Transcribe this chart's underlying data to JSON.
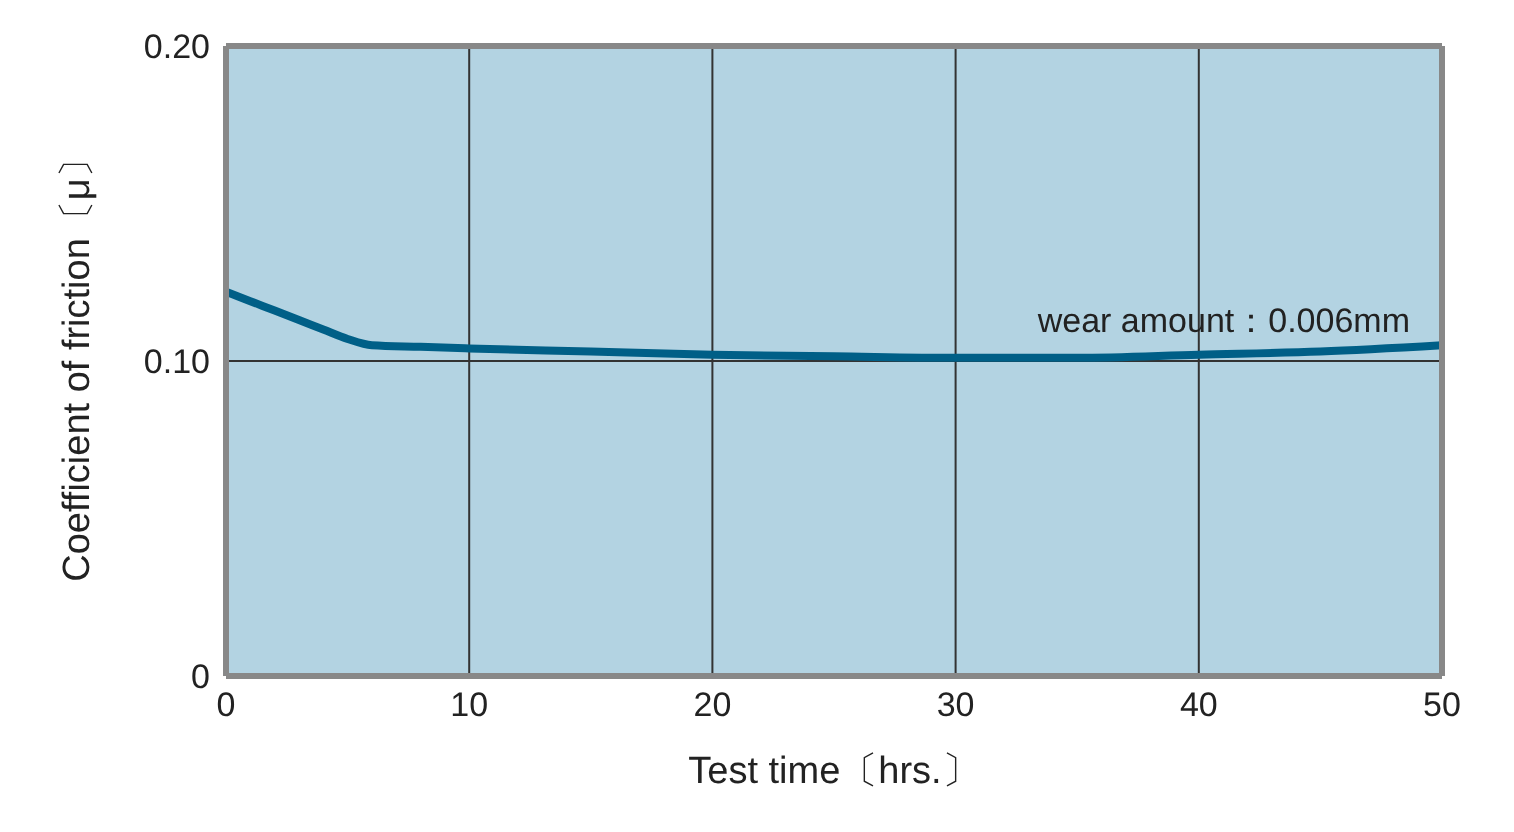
{
  "chart_data": {
    "type": "line",
    "xlabel": "Test time〔hrs.〕",
    "ylabel": "Coefficient of friction〔μ〕",
    "annotations": [
      "wear amount：0.006mm"
    ],
    "x": [
      0,
      1,
      2,
      3,
      4,
      5,
      6,
      8,
      10,
      15,
      20,
      25,
      30,
      35,
      40,
      45,
      50
    ],
    "series": [
      {
        "color": "#005f87",
        "values": [
          0.122,
          0.119,
          0.116,
          0.113,
          0.11,
          0.107,
          0.105,
          0.1045,
          0.104,
          0.103,
          0.102,
          0.1015,
          0.101,
          0.101,
          0.102,
          0.103,
          0.105
        ]
      }
    ],
    "xlim": [
      0,
      50
    ],
    "xticks": [
      0,
      10,
      20,
      30,
      40,
      50
    ],
    "ylim": [
      0,
      0.2
    ],
    "yticks": [
      0,
      {
        "value": 0.1,
        "label": "0.10"
      },
      {
        "value": 0.2,
        "label": "0.20"
      }
    ],
    "grid": true,
    "marker": "none",
    "line_style": "solid",
    "legend": false
  }
}
